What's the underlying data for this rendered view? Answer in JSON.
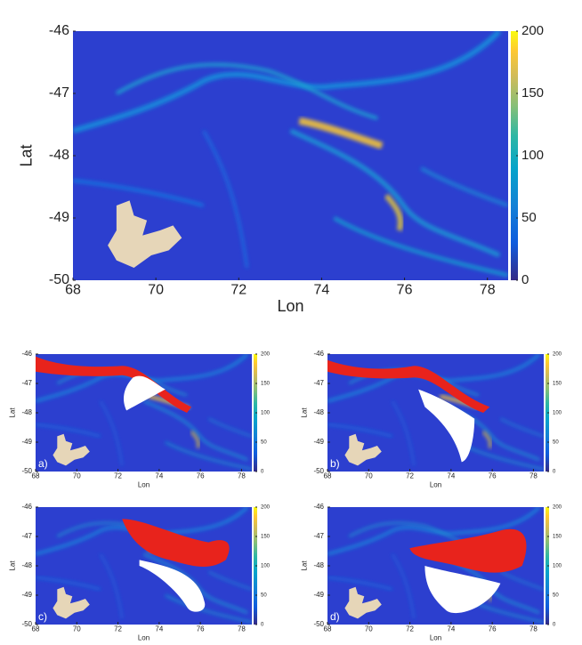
{
  "chart_data": [
    {
      "type": "heatmap",
      "xlabel": "Lon",
      "ylabel": "Lat",
      "xlim": [
        68,
        78.5
      ],
      "ylim": [
        -50,
        -46
      ],
      "xticks": [
        68,
        70,
        72,
        74,
        76,
        78
      ],
      "yticks": [
        -50,
        -49,
        -48,
        -47,
        -46
      ],
      "clim": [
        0,
        200
      ],
      "cticks": [
        0,
        50,
        100,
        150,
        200
      ]
    },
    {
      "type": "heatmap",
      "panel_label": "a)",
      "xlabel": "Lon",
      "ylabel": "Lat",
      "xlim": [
        68,
        78.5
      ],
      "ylim": [
        -50,
        -46
      ],
      "xticks": [
        68,
        70,
        72,
        74,
        76,
        78
      ],
      "yticks": [
        -50,
        -49,
        -48,
        -47,
        -46
      ],
      "clim": [
        0,
        200
      ],
      "cticks": [
        0,
        50,
        100,
        150,
        200
      ]
    },
    {
      "type": "heatmap",
      "panel_label": "b)",
      "xlabel": "Lon",
      "ylabel": "Lat",
      "xlim": [
        68,
        78.5
      ],
      "ylim": [
        -50,
        -46
      ],
      "xticks": [
        68,
        70,
        72,
        74,
        76,
        78
      ],
      "yticks": [
        -50,
        -49,
        -48,
        -47,
        -46
      ],
      "clim": [
        0,
        200
      ],
      "cticks": [
        0,
        50,
        100,
        150,
        200
      ]
    },
    {
      "type": "heatmap",
      "panel_label": "c)",
      "xlabel": "Lon",
      "ylabel": "Lat",
      "xlim": [
        68,
        78.5
      ],
      "ylim": [
        -50,
        -46
      ],
      "xticks": [
        68,
        70,
        72,
        74,
        76,
        78
      ],
      "yticks": [
        -50,
        -49,
        -48,
        -47,
        -46
      ],
      "clim": [
        0,
        200
      ],
      "cticks": [
        0,
        50,
        100,
        150,
        200
      ]
    },
    {
      "type": "heatmap",
      "panel_label": "d)",
      "xlabel": "Lon",
      "ylabel": "Lat",
      "xlim": [
        68,
        78.5
      ],
      "ylim": [
        -50,
        -46
      ],
      "xticks": [
        68,
        70,
        72,
        74,
        76,
        78
      ],
      "yticks": [
        -50,
        -49,
        -48,
        -47,
        -46
      ],
      "clim": [
        0,
        200
      ],
      "cticks": [
        0,
        50,
        100,
        150,
        200
      ]
    }
  ]
}
